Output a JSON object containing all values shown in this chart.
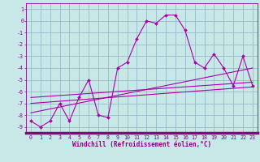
{
  "xlabel": "Windchill (Refroidissement éolien,°C)",
  "background_color": "#c8e8e8",
  "grid_color": "#99bbcc",
  "line_color": "#aa00aa",
  "spine_color": "#880088",
  "tick_color": "#880088",
  "x_main": [
    0,
    1,
    2,
    3,
    4,
    5,
    6,
    7,
    8,
    9,
    10,
    11,
    12,
    13,
    14,
    15,
    16,
    17,
    18,
    19,
    20,
    21,
    22,
    23
  ],
  "y_main": [
    -8.5,
    -9,
    -8.5,
    -7,
    -8.5,
    -6.5,
    -5,
    -8,
    -8.2,
    -4,
    -3.5,
    -1.5,
    0,
    -0.2,
    0.5,
    0.5,
    -0.8,
    -3.5,
    -4,
    -2.8,
    -4,
    -5.5,
    -3,
    -5.5
  ],
  "trend1_x": [
    0,
    23
  ],
  "trend1_y": [
    -7.8,
    -4.0
  ],
  "trend2_x": [
    0,
    23
  ],
  "trend2_y": [
    -7.0,
    -5.6
  ],
  "trend3_x": [
    0,
    23
  ],
  "trend3_y": [
    -6.5,
    -5.2
  ],
  "ylim": [
    -9.5,
    1.5
  ],
  "xlim": [
    -0.5,
    23.5
  ],
  "xticks": [
    0,
    1,
    2,
    3,
    4,
    5,
    6,
    7,
    8,
    9,
    10,
    11,
    12,
    13,
    14,
    15,
    16,
    17,
    18,
    19,
    20,
    21,
    22,
    23
  ],
  "yticks": [
    1,
    0,
    -1,
    -2,
    -3,
    -4,
    -5,
    -6,
    -7,
    -8,
    -9
  ],
  "xlabel_fontsize": 5.5,
  "tick_fontsize": 4.8,
  "bottom_bar_color": "#880088"
}
